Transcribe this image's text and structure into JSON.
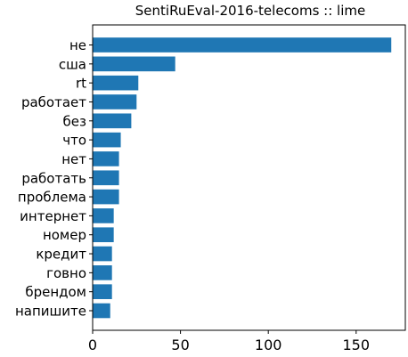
{
  "chart_data": {
    "type": "bar",
    "orientation": "horizontal",
    "title": "SentiRuEval-2016-telecoms :: lime",
    "xlabel": "",
    "ylabel": "",
    "categories": [
      "не",
      "сша",
      "rt",
      "работает",
      "без",
      "что",
      "нет",
      "работать",
      "проблема",
      "интернет",
      "номер",
      "кредит",
      "говно",
      "брендом",
      "напишите"
    ],
    "values": [
      170,
      47,
      26,
      25,
      22,
      16,
      15,
      15,
      15,
      12,
      12,
      11,
      11,
      11,
      10
    ],
    "xlim": [
      0,
      178
    ],
    "xticks": [
      0,
      50,
      100,
      150
    ],
    "grid": false,
    "bar_color": "#1f77b4"
  }
}
